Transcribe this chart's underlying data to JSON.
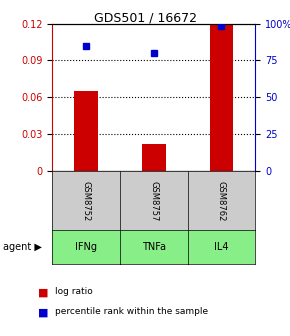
{
  "title": "GDS501 / 16672",
  "samples": [
    "GSM8752",
    "GSM8757",
    "GSM8762"
  ],
  "agents": [
    "IFNg",
    "TNFa",
    "IL4"
  ],
  "log_ratios": [
    0.065,
    0.022,
    0.12
  ],
  "percentile_ranks": [
    85,
    80,
    98
  ],
  "bar_color": "#cc0000",
  "dot_color": "#0000cc",
  "ylim_left": [
    0,
    0.12
  ],
  "ylim_right": [
    0,
    100
  ],
  "yticks_left": [
    0,
    0.03,
    0.06,
    0.09,
    0.12
  ],
  "yticks_right": [
    0,
    25,
    50,
    75,
    100
  ],
  "ytick_labels_left": [
    "0",
    "0.03",
    "0.06",
    "0.09",
    "0.12"
  ],
  "ytick_labels_right": [
    "0",
    "25",
    "50",
    "75",
    "100%"
  ],
  "agent_colors": [
    "#aaffaa",
    "#aaffaa",
    "#aaffaa"
  ],
  "sample_bg_color": "#cccccc",
  "agent_bg_color": "#88ee88",
  "legend_log_color": "#cc0000",
  "legend_dot_color": "#0000cc",
  "legend_log_label": "log ratio",
  "legend_dot_label": "percentile rank within the sample",
  "agent_label": "agent",
  "background_color": "#ffffff"
}
